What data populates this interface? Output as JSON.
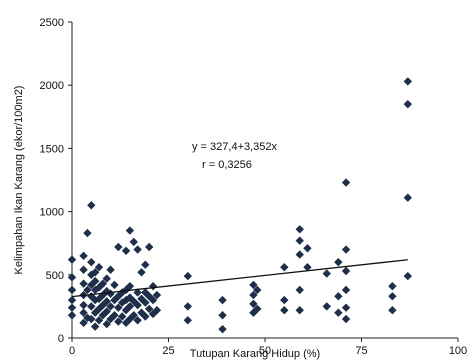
{
  "chart_data": {
    "type": "scatter",
    "xlabel": "Tutupan Karang Hidup (%)",
    "ylabel": "Kelimpahan Ikan Karang (ekor/100m2)",
    "xlim": [
      0,
      100
    ],
    "ylim": [
      0,
      2500
    ],
    "x_ticks": [
      "0",
      "25",
      "50",
      "75",
      "100"
    ],
    "y_ticks": [
      "0",
      "500",
      "1000",
      "1500",
      "2000",
      "2500"
    ],
    "grid": false,
    "legend": "none",
    "marker": "diamond",
    "marker_color": "#1f2f4a",
    "trendline": {
      "intercept": 327.4,
      "slope": 3.352,
      "x_range": [
        0,
        87
      ],
      "equation_label": "y = 327,4+3,352x",
      "r_label": "r = 0,3256"
    },
    "points": [
      [
        0,
        180
      ],
      [
        0,
        240
      ],
      [
        0,
        300
      ],
      [
        0,
        380
      ],
      [
        0,
        480
      ],
      [
        0,
        620
      ],
      [
        3,
        120
      ],
      [
        3,
        200
      ],
      [
        3,
        260
      ],
      [
        3,
        340
      ],
      [
        3,
        430
      ],
      [
        3,
        540
      ],
      [
        3,
        650
      ],
      [
        4,
        160
      ],
      [
        4,
        380
      ],
      [
        4,
        830
      ],
      [
        5,
        150
      ],
      [
        5,
        250
      ],
      [
        5,
        330
      ],
      [
        5,
        420
      ],
      [
        5,
        500
      ],
      [
        5,
        600
      ],
      [
        5,
        1050
      ],
      [
        6,
        90
      ],
      [
        6,
        200
      ],
      [
        6,
        300
      ],
      [
        6,
        380
      ],
      [
        6,
        450
      ],
      [
        6,
        520
      ],
      [
        7,
        140
      ],
      [
        7,
        230
      ],
      [
        7,
        310
      ],
      [
        7,
        400
      ],
      [
        7,
        560
      ],
      [
        8,
        180
      ],
      [
        8,
        260
      ],
      [
        8,
        340
      ],
      [
        8,
        430
      ],
      [
        9,
        110
      ],
      [
        9,
        210
      ],
      [
        9,
        290
      ],
      [
        9,
        370
      ],
      [
        9,
        470
      ],
      [
        10,
        150
      ],
      [
        10,
        250
      ],
      [
        10,
        350
      ],
      [
        10,
        540
      ],
      [
        11,
        180
      ],
      [
        11,
        300
      ],
      [
        11,
        420
      ],
      [
        12,
        130
      ],
      [
        12,
        240
      ],
      [
        12,
        330
      ],
      [
        12,
        720
      ],
      [
        13,
        170
      ],
      [
        13,
        280
      ],
      [
        13,
        360
      ],
      [
        14,
        120
      ],
      [
        14,
        220
      ],
      [
        14,
        300
      ],
      [
        14,
        380
      ],
      [
        14,
        690
      ],
      [
        15,
        150
      ],
      [
        15,
        250
      ],
      [
        15,
        320
      ],
      [
        15,
        410
      ],
      [
        15,
        850
      ],
      [
        16,
        180
      ],
      [
        16,
        290
      ],
      [
        16,
        760
      ],
      [
        17,
        140
      ],
      [
        17,
        260
      ],
      [
        17,
        360
      ],
      [
        17,
        700
      ],
      [
        18,
        200
      ],
      [
        18,
        310
      ],
      [
        18,
        520
      ],
      [
        19,
        170
      ],
      [
        19,
        280
      ],
      [
        19,
        360
      ],
      [
        19,
        580
      ],
      [
        20,
        230
      ],
      [
        20,
        330
      ],
      [
        20,
        720
      ],
      [
        21,
        190
      ],
      [
        21,
        300
      ],
      [
        21,
        410
      ],
      [
        22,
        220
      ],
      [
        22,
        340
      ],
      [
        30,
        140
      ],
      [
        30,
        250
      ],
      [
        30,
        490
      ],
      [
        39,
        70
      ],
      [
        39,
        180
      ],
      [
        39,
        300
      ],
      [
        47,
        200
      ],
      [
        47,
        270
      ],
      [
        47,
        340
      ],
      [
        47,
        420
      ],
      [
        48,
        230
      ],
      [
        48,
        380
      ],
      [
        55,
        220
      ],
      [
        55,
        300
      ],
      [
        55,
        560
      ],
      [
        59,
        220
      ],
      [
        59,
        380
      ],
      [
        59,
        660
      ],
      [
        59,
        770
      ],
      [
        59,
        860
      ],
      [
        61,
        560
      ],
      [
        61,
        710
      ],
      [
        66,
        250
      ],
      [
        66,
        510
      ],
      [
        69,
        200
      ],
      [
        69,
        330
      ],
      [
        69,
        600
      ],
      [
        71,
        150
      ],
      [
        71,
        240
      ],
      [
        71,
        380
      ],
      [
        71,
        530
      ],
      [
        71,
        700
      ],
      [
        71,
        1230
      ],
      [
        83,
        220
      ],
      [
        83,
        330
      ],
      [
        83,
        410
      ],
      [
        87,
        490
      ],
      [
        87,
        1110
      ],
      [
        87,
        1850
      ],
      [
        87,
        2030
      ]
    ]
  }
}
